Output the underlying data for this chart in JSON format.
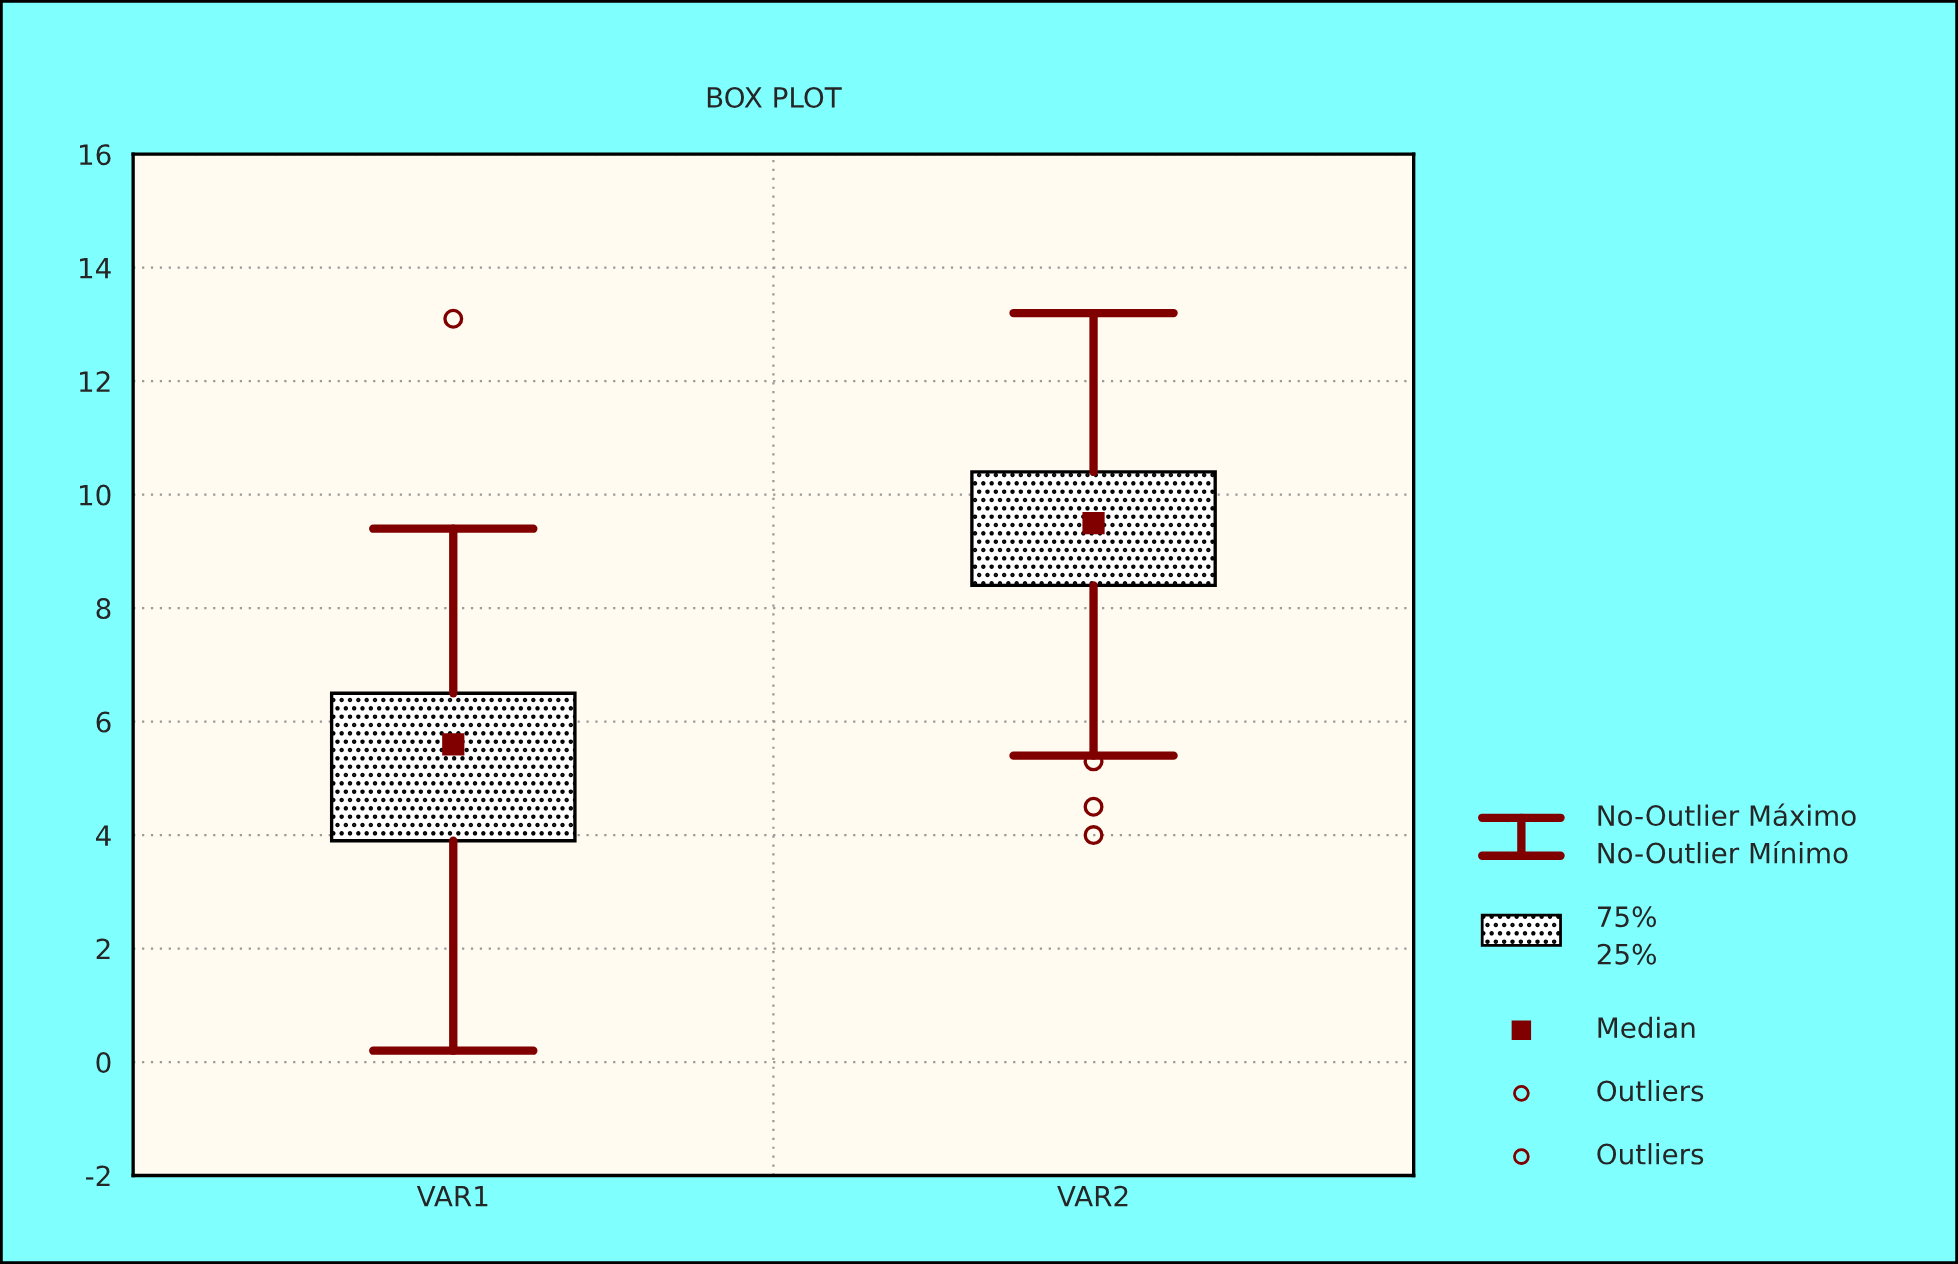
{
  "chart_data": {
    "type": "box",
    "title": "BOX PLOT",
    "categories": [
      "VAR1",
      "VAR2"
    ],
    "boxes": [
      {
        "low": 0.2,
        "q1": 3.9,
        "median": 5.6,
        "q3": 6.5,
        "high": 9.4,
        "outliers": [
          13.1
        ]
      },
      {
        "low": 5.4,
        "q1": 8.4,
        "median": 9.5,
        "q3": 10.4,
        "high": 13.2,
        "outliers": [
          5.3,
          4.5,
          4.0
        ]
      }
    ],
    "ylim": [
      -2,
      16
    ],
    "yticks": [
      -2,
      0,
      2,
      4,
      6,
      8,
      10,
      12,
      14,
      16
    ],
    "grid": true,
    "annotations": [
      "No-Outlier Máximo\nNo-Outlier Mínimo",
      "75%\n25%",
      "Median",
      "Outliers",
      "Outliers"
    ]
  }
}
